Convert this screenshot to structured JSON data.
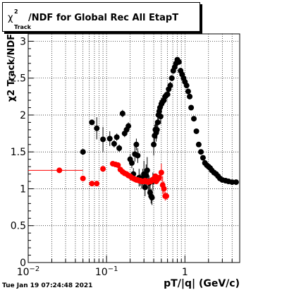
{
  "title": {
    "chi": "χ",
    "sup": "2",
    "sub": "Track",
    "main": "/NDF for Global Rec All EtapT"
  },
  "timestamp": "Tue Jan 19 07:24:48 2021",
  "colors": {
    "series_black": "#000000",
    "series_red": "#ff0000",
    "grid": "#000000",
    "frame": "#000000"
  },
  "chart_data": {
    "type": "scatter",
    "title": "χ2 Track/NDF for Global Rec All EtapT",
    "xlabel": "pT/|q| (GeV/c)",
    "ylabel": "χ2 Track/NDF",
    "xscale": "log",
    "xlim": [
      0.01,
      5.0
    ],
    "ylim": [
      0,
      3.1
    ],
    "x_ticks": [
      {
        "value": 0.01,
        "base": "10",
        "exp": "−2"
      },
      {
        "value": 0.1,
        "base": "10",
        "exp": "−1"
      },
      {
        "value": 1,
        "base": "1",
        "exp": ""
      }
    ],
    "y_ticks": [
      "0",
      "0.5",
      "1",
      "1.5",
      "2",
      "2.5",
      "3"
    ],
    "grid": true,
    "legend": "none",
    "series": [
      {
        "color": "#000000",
        "x": [
          0.05,
          0.065,
          0.075,
          0.09,
          0.11,
          0.125,
          0.135,
          0.145,
          0.16,
          0.17,
          0.18,
          0.19,
          0.2,
          0.21,
          0.22,
          0.23,
          0.24,
          0.25,
          0.26,
          0.27,
          0.28,
          0.29,
          0.3,
          0.31,
          0.32,
          0.33,
          0.34,
          0.35,
          0.36,
          0.37,
          0.38,
          0.39,
          0.4,
          0.41,
          0.42,
          0.43,
          0.44,
          0.45,
          0.46,
          0.47,
          0.48,
          0.49,
          0.5,
          0.52,
          0.54,
          0.56,
          0.58,
          0.6,
          0.62,
          0.65,
          0.68,
          0.71,
          0.74,
          0.77,
          0.8,
          0.84,
          0.88,
          0.92,
          0.96,
          1.0,
          1.05,
          1.1,
          1.15,
          1.2,
          1.3,
          1.4,
          1.5,
          1.6,
          1.7,
          1.8,
          1.9,
          2.0,
          2.1,
          2.2,
          2.35,
          2.5,
          2.65,
          2.8,
          3.0,
          3.3,
          3.6,
          4.0,
          4.5
        ],
        "y": [
          1.5,
          1.9,
          1.82,
          1.67,
          1.68,
          1.61,
          1.7,
          1.55,
          2.02,
          1.75,
          1.8,
          1.85,
          1.4,
          1.35,
          1.2,
          1.47,
          1.6,
          1.45,
          1.15,
          1.12,
          1.1,
          1.15,
          1.2,
          1.02,
          1.18,
          1.25,
          1.1,
          1.08,
          0.95,
          0.9,
          0.88,
          1.1,
          1.6,
          1.72,
          1.8,
          1.76,
          1.8,
          1.9,
          2.0,
          2.05,
          2.1,
          1.98,
          2.15,
          2.18,
          2.2,
          2.25,
          2.27,
          2.28,
          2.35,
          2.4,
          2.5,
          2.6,
          2.65,
          2.7,
          2.75,
          2.72,
          2.6,
          2.55,
          2.5,
          2.45,
          2.4,
          2.32,
          2.25,
          2.1,
          1.95,
          1.78,
          1.6,
          1.5,
          1.42,
          1.35,
          1.32,
          1.3,
          1.28,
          1.25,
          1.22,
          1.2,
          1.17,
          1.14,
          1.12,
          1.11,
          1.1,
          1.09,
          1.09
        ],
        "yerr": [
          0.03,
          0.03,
          0.15,
          0.17,
          0.1,
          0.05,
          0.05,
          0.05,
          0.05,
          0.05,
          0.05,
          0.05,
          0.07,
          0.07,
          0.08,
          0.1,
          0.08,
          0.1,
          0.12,
          0.08,
          0.1,
          0.12,
          0.18,
          0.12,
          0.15,
          0.18,
          0.18,
          0.1,
          0.1,
          0.1,
          0.1,
          0.12,
          0.15,
          0.15,
          0.12,
          0.12,
          0.12,
          0.1,
          0.1,
          0.1,
          0.1,
          0.1,
          0.08,
          0.08,
          0.07,
          0.06,
          0.05,
          0.05,
          0.05,
          0.05,
          0.04,
          0.04,
          0.04,
          0.04,
          0.04,
          0.04,
          0.04,
          0.04,
          0.04,
          0.04,
          0.03,
          0.03,
          0.03,
          0.03,
          0.02,
          0.02,
          0.02,
          0.02,
          0.02,
          0.02,
          0.02,
          0.02,
          0.02,
          0.02,
          0.02,
          0.02,
          0.02,
          0.02,
          0.02,
          0.02,
          0.02,
          0.02,
          0.02
        ]
      },
      {
        "color": "#ff0000",
        "x": [
          0.025,
          0.05,
          0.065,
          0.075,
          0.09,
          0.12,
          0.13,
          0.14,
          0.15,
          0.16,
          0.17,
          0.18,
          0.19,
          0.2,
          0.21,
          0.22,
          0.23,
          0.24,
          0.25,
          0.26,
          0.27,
          0.28,
          0.29,
          0.3,
          0.31,
          0.32,
          0.33,
          0.34,
          0.35,
          0.36,
          0.37,
          0.38,
          0.39,
          0.4,
          0.41,
          0.42,
          0.43,
          0.44,
          0.45,
          0.47,
          0.5,
          0.52,
          0.54,
          0.56,
          0.58
        ],
        "y": [
          1.25,
          1.14,
          1.07,
          1.07,
          1.27,
          1.34,
          1.33,
          1.32,
          1.26,
          1.23,
          1.21,
          1.2,
          1.18,
          1.17,
          1.15,
          1.14,
          1.13,
          1.12,
          1.12,
          1.11,
          1.11,
          1.1,
          1.1,
          1.1,
          1.11,
          1.1,
          1.1,
          1.09,
          1.1,
          1.1,
          1.1,
          1.12,
          1.12,
          1.13,
          1.15,
          1.17,
          1.1,
          1.12,
          1.13,
          1.15,
          1.22,
          1.05,
          1.0,
          0.9,
          0.9
        ],
        "yerr": [
          0.03,
          0.02,
          0.02,
          0.02,
          0.02,
          0.02,
          0.02,
          0.02,
          0.02,
          0.02,
          0.02,
          0.02,
          0.02,
          0.02,
          0.02,
          0.02,
          0.02,
          0.02,
          0.02,
          0.02,
          0.02,
          0.02,
          0.02,
          0.02,
          0.02,
          0.02,
          0.02,
          0.02,
          0.02,
          0.02,
          0.02,
          0.02,
          0.02,
          0.02,
          0.02,
          0.02,
          0.03,
          0.03,
          0.03,
          0.04,
          0.12,
          0.12,
          0.1,
          0.06,
          0.05
        ],
        "xerr_left": [
          0.015,
          0,
          0,
          0,
          0,
          0,
          0,
          0,
          0,
          0,
          0,
          0,
          0,
          0,
          0,
          0,
          0,
          0,
          0,
          0,
          0,
          0,
          0,
          0,
          0,
          0,
          0,
          0,
          0,
          0,
          0,
          0,
          0,
          0,
          0,
          0,
          0,
          0,
          0,
          0,
          0,
          0,
          0,
          0,
          0
        ],
        "xerr_right": [
          0.025,
          0,
          0,
          0,
          0,
          0,
          0,
          0,
          0,
          0,
          0,
          0,
          0,
          0,
          0,
          0,
          0,
          0,
          0,
          0,
          0,
          0,
          0,
          0,
          0,
          0,
          0,
          0,
          0,
          0,
          0,
          0,
          0,
          0,
          0,
          0,
          0,
          0,
          0,
          0,
          0,
          0,
          0,
          0,
          0
        ]
      }
    ]
  }
}
